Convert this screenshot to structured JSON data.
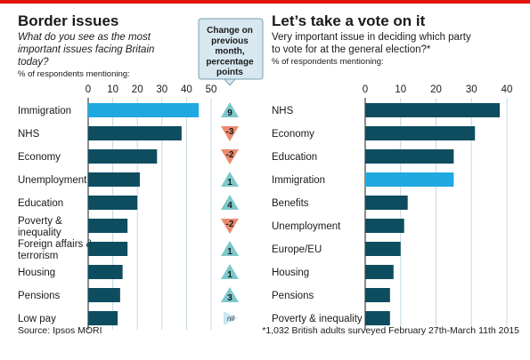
{
  "chart_data": [
    {
      "type": "bar",
      "title": "Border issues",
      "subtitle": "What do you see as the most important issues facing Britain today?",
      "unit_note": "% of respondents mentioning:",
      "categories": [
        "Immigration",
        "NHS",
        "Economy",
        "Unemployment",
        "Education",
        "Poverty & inequality",
        "Foreign affairs & terrorism",
        "Housing",
        "Pensions",
        "Low pay"
      ],
      "values": [
        45,
        38,
        28,
        21,
        20,
        16,
        16,
        14,
        13,
        12
      ],
      "highlight": "Immigration",
      "xlim": [
        0,
        50
      ],
      "xticks": [
        0,
        10,
        20,
        30,
        40,
        50
      ],
      "grid": true,
      "change_header": "Change on previous month, percentage points",
      "change_values": [
        "9",
        "-3",
        "-2",
        "1",
        "4",
        "-2",
        "1",
        "1",
        "3",
        "nil"
      ],
      "colors": {
        "bar": "#0d4d5f",
        "highlight": "#20a9e1",
        "up": "#7dc8cc",
        "down": "#ea8a6c",
        "nil": "#c9e6f3"
      }
    },
    {
      "type": "bar",
      "title": "Let’s take a vote on it",
      "subtitle": "Very important issue in deciding which party to vote for at the general election?*",
      "unit_note": "% of respondents mentioning:",
      "categories": [
        "NHS",
        "Economy",
        "Education",
        "Immigration",
        "Benefits",
        "Unemployment",
        "Europe/EU",
        "Housing",
        "Pensions",
        "Poverty & inequality"
      ],
      "values": [
        38,
        31,
        25,
        25,
        12,
        11,
        10,
        8,
        7,
        7
      ],
      "highlight": "Immigration",
      "xlim": [
        0,
        40
      ],
      "xticks": [
        0,
        10,
        20,
        30,
        40
      ],
      "grid": true,
      "colors": {
        "bar": "#0d4d5f",
        "highlight": "#20a9e1"
      }
    }
  ],
  "footer": {
    "source": "Source: Ipsos MORI",
    "footnote": "*1,032 British adults surveyed February 27th-March 11th 2015"
  }
}
